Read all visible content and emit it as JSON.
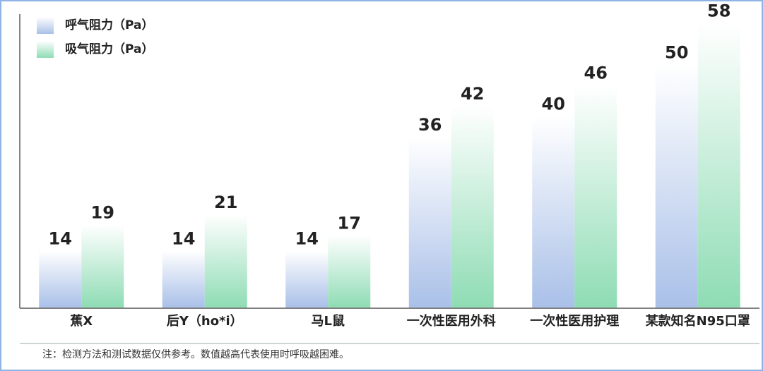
{
  "chart_data": {
    "type": "bar",
    "categories": [
      "蕉X",
      "后Y（ho*i）",
      "马L鼠",
      "一次性医用外科",
      "一次性医用护理",
      "某款知名N95口罩"
    ],
    "series": [
      {
        "name": "呼气阻力（Pa）",
        "color": "#a9c0e8",
        "values": [
          14,
          14,
          14,
          36,
          40,
          50
        ]
      },
      {
        "name": "吸气阻力（Pa）",
        "color": "#8edcb4",
        "values": [
          19,
          21,
          17,
          42,
          46,
          58
        ]
      }
    ],
    "ylim": [
      3,
      60
    ],
    "legend": "top-left",
    "note": "注：检测方法和测试数据仅供参考。数值越高代表使用时呼吸越困难。"
  }
}
